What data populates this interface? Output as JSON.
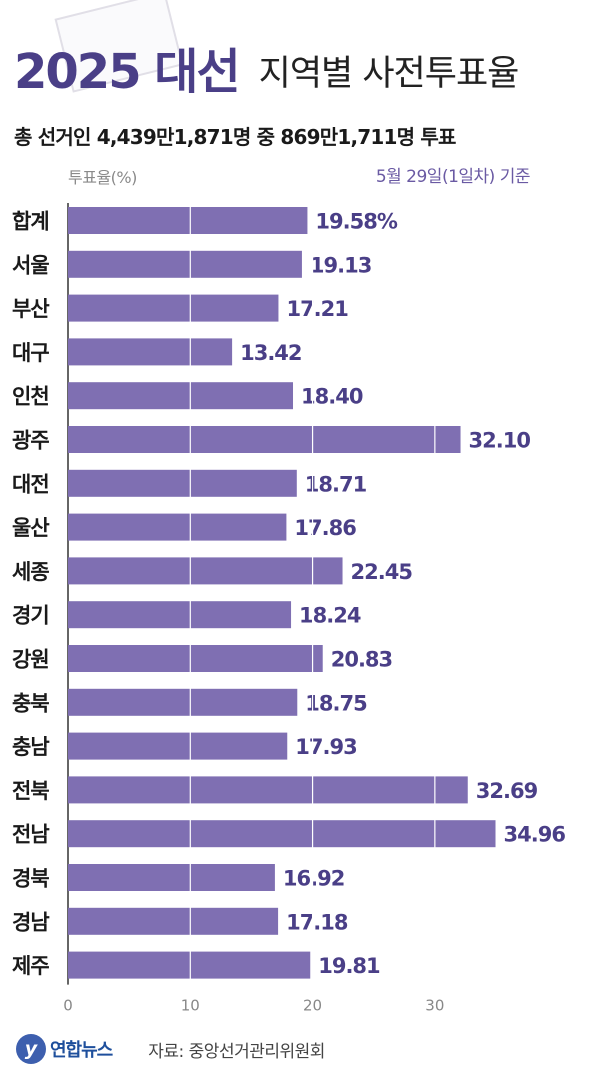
{
  "header": {
    "title_main": "2025 대선",
    "title_sub": "지역별 사전투표율",
    "summary": "총 선거인 4,439만1,871명 중 869만1,711명 투표",
    "basis": "5월 29일(1일차) 기준"
  },
  "footer": {
    "logo_mark": "y",
    "logo_text": "연합뉴스",
    "source": "자료: 중앙선거관리위원회"
  },
  "colors": {
    "bar": "#7f6fb2",
    "value_text": "#4a3f87",
    "title": "#4a3f87"
  },
  "chart_data": {
    "type": "bar",
    "orientation": "horizontal",
    "ylabel": "투표율(%)",
    "xlim": [
      0,
      35
    ],
    "x_ticks": [
      0,
      10,
      20,
      30
    ],
    "gridlines": "vertical, white, over bars",
    "categories": [
      "합계",
      "서울",
      "부산",
      "대구",
      "인천",
      "광주",
      "대전",
      "울산",
      "세종",
      "경기",
      "강원",
      "충북",
      "충남",
      "전북",
      "전남",
      "경북",
      "경남",
      "제주"
    ],
    "values": [
      19.58,
      19.13,
      17.21,
      13.42,
      18.4,
      32.1,
      18.71,
      17.86,
      22.45,
      18.24,
      20.83,
      18.75,
      17.93,
      32.69,
      34.96,
      16.92,
      17.18,
      19.81
    ],
    "value_labels": [
      "19.58%",
      "19.13",
      "17.21",
      "13.42",
      "18.40",
      "32.10",
      "18.71",
      "17.86",
      "22.45",
      "18.24",
      "20.83",
      "18.75",
      "17.93",
      "32.69",
      "34.96",
      "16.92",
      "17.18",
      "19.81"
    ]
  }
}
